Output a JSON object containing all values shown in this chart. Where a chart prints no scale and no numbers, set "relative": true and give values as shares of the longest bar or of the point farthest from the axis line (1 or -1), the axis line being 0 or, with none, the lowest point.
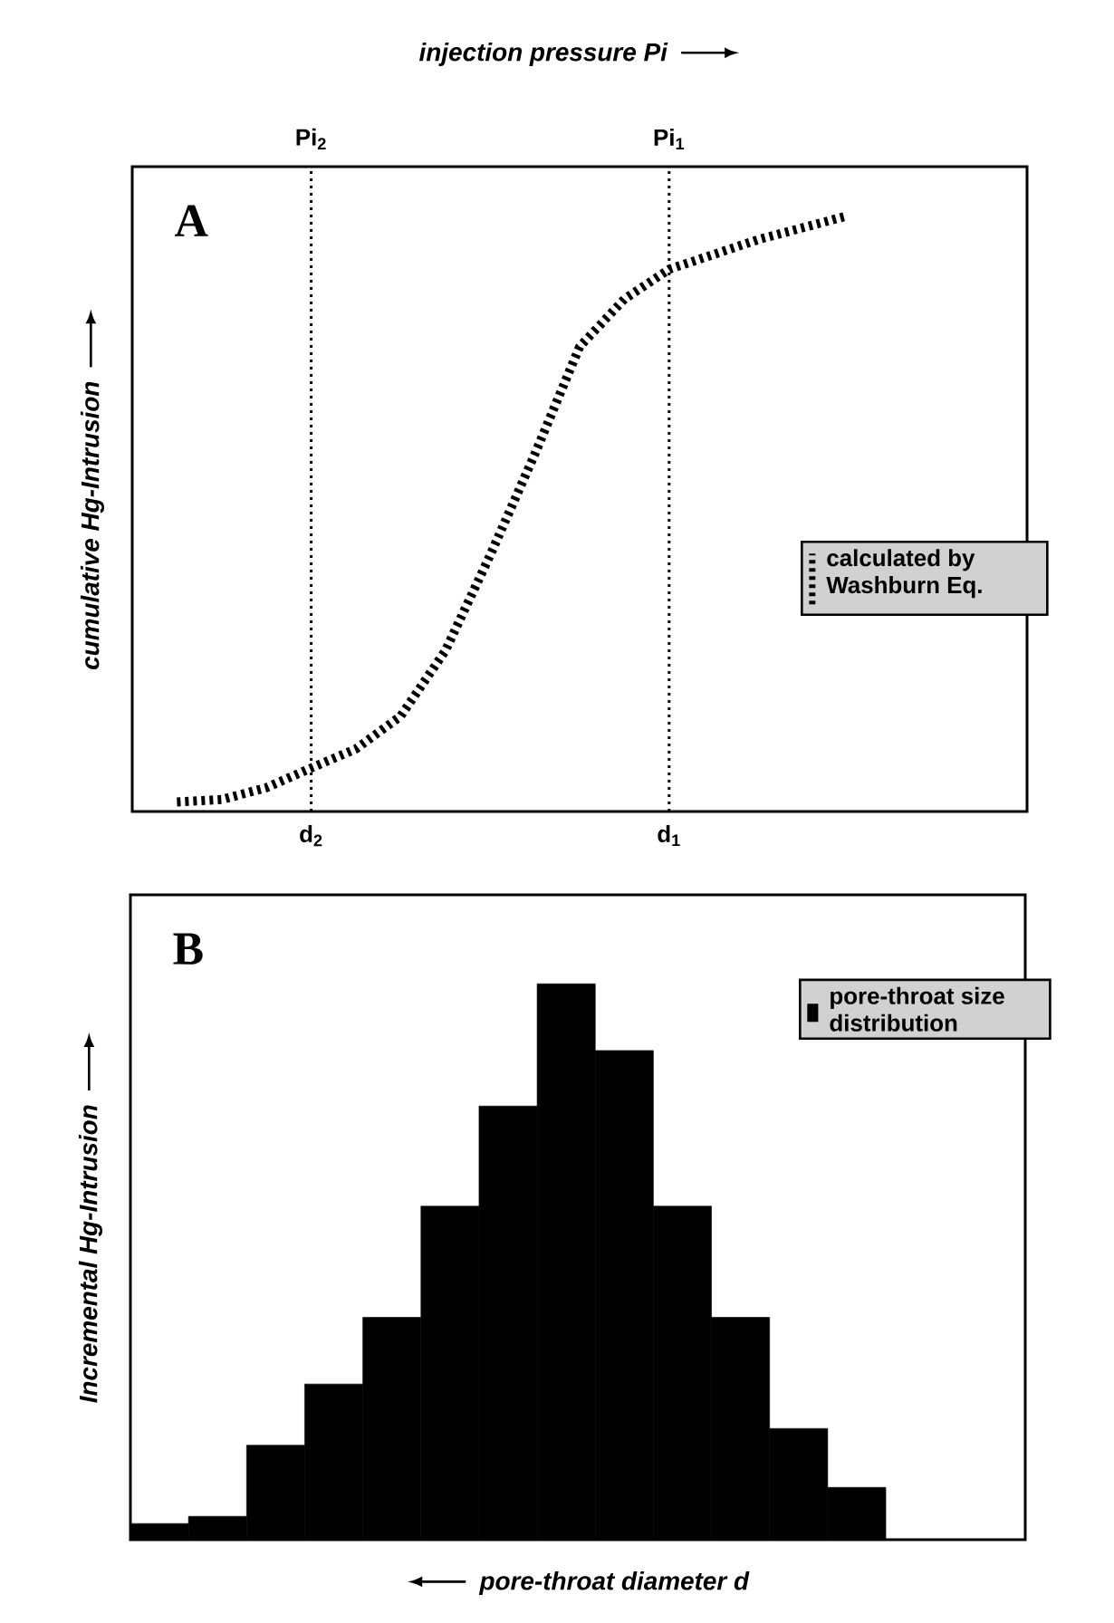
{
  "chart_data": [
    {
      "type": "line",
      "x2label": "injection pressure Pi",
      "ylabel": "cumulative Hg-Intrusion",
      "relative": true,
      "categories": [
        null,
        null,
        null,
        null,
        "d$_{2}$",
        null,
        null,
        null,
        null,
        null,
        null,
        null,
        "d$_{1}$",
        null,
        null,
        null,
        null,
        null,
        null,
        null,
        null
      ],
      "ref_lines": [
        {
          "axis": "x",
          "value": "d$_{2}$",
          "label": "Pi$_{2}$",
          "color": "#000000",
          "line_style": "dotted"
        },
        {
          "axis": "x",
          "value": "d$_{1}$",
          "label": "Pi$_{1}$",
          "color": "#000000",
          "line_style": "dotted"
        }
      ],
      "series": [
        {
          "name": "calculated by Washburn Eq.",
          "color": "#000000",
          "values": [
            null,
            0.016,
            0.02,
            0.04,
            0.073,
            0.105,
            0.16,
            0.27,
            0.43,
            0.6,
            0.78,
            0.86,
            0.91,
            0.935,
            0.96,
            0.98,
            1,
            null,
            null,
            null,
            null
          ]
        }
      ],
      "legend": "right",
      "line_style": "dashed",
      "marker": "none",
      "annotations": [
        "A"
      ]
    },
    {
      "type": "bar",
      "xlabel": "pore-throat diameter d",
      "ylabel": "Incremental Hg-Intrusion",
      "relative": true,
      "categories": [
        null,
        null,
        null,
        null,
        null,
        null,
        null,
        null,
        null,
        null,
        null,
        null,
        null
      ],
      "series": [
        {
          "name": "pore-throat size distribution",
          "color": "#000000",
          "values": [
            0.029,
            0.042,
            0.17,
            0.28,
            0.4,
            0.6,
            0.78,
            1,
            0.88,
            0.6,
            0.4,
            0.2,
            0.094
          ]
        }
      ],
      "legend": "top right",
      "annotations": [
        "B"
      ]
    }
  ]
}
